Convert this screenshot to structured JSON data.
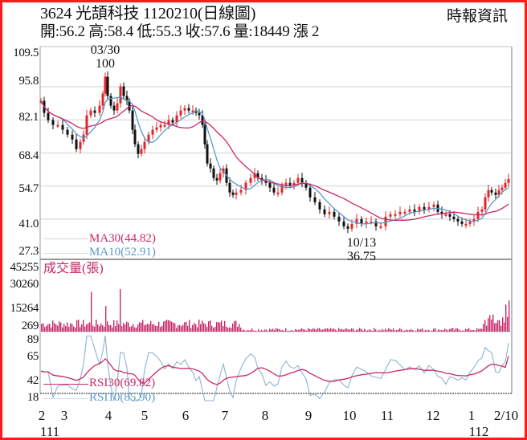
{
  "header": {
    "title": "3624  光頡科技 1120210(日線圖)",
    "ohlc": "開:56.2 高:58.4 低:55.3 收:57.6 量:18449 漲 2",
    "source": "時報資訊"
  },
  "colors": {
    "border": "#ff1a1a",
    "ma30": "#c8286a",
    "ma10": "#5b9ac9",
    "rsi30": "#c8286a",
    "rsi10": "#8fb2cf",
    "volume": "#c8286a",
    "up_candle": "#e0262b",
    "down_candle": "#111111",
    "grid": "#e6e6e6",
    "axis": "#999999"
  },
  "price_panel": {
    "y_ticks": [
      "109.5",
      "95.8",
      "82.1",
      "68.4",
      "54.7",
      "41.0",
      "27.3"
    ],
    "annotation_high": {
      "date": "03/30",
      "value": "100"
    },
    "annotation_low": {
      "date": "10/13",
      "value": "36.75"
    },
    "legend": [
      {
        "label": "MA30(44.82)",
        "key": "ma30"
      },
      {
        "label": "MA10(52.91)",
        "key": "ma10"
      }
    ]
  },
  "volume_panel": {
    "title": "成交量(張)",
    "y_ticks": [
      "45255",
      "30260",
      "15264",
      "269"
    ]
  },
  "rsi_panel": {
    "y_ticks": [
      "89",
      "65",
      "42",
      "18"
    ],
    "legend": [
      {
        "label": "RSI30(69.82)",
        "key": "rsi30"
      },
      {
        "label": "RSI10(85.90)",
        "key": "rsi10"
      }
    ]
  },
  "x_axis": {
    "labels": [
      "2",
      "3",
      "4",
      "5",
      "6",
      "7",
      "8",
      "9",
      "10",
      "11",
      "12",
      "1",
      "2/10"
    ],
    "year_labels": [
      {
        "label": "111",
        "under": "2"
      },
      {
        "label": "112",
        "under": "1"
      }
    ]
  },
  "chart_data": {
    "type": "candlestick",
    "title": "3624 光頡科技 1120210(日線圖)",
    "subtitle": "開:56.2 高:58.4 低:55.3 收:57.6 量:18449 漲 2",
    "x_range": [
      "111/02",
      "112/02/10"
    ],
    "x_tick_labels": [
      "2",
      "3",
      "4",
      "5",
      "6",
      "7",
      "8",
      "9",
      "10",
      "11",
      "12",
      "1",
      "2/10"
    ],
    "price": {
      "ylim": [
        27.3,
        109.5
      ],
      "y_ticks": [
        109.5,
        95.8,
        82.1,
        68.4,
        54.7,
        41.0,
        27.3
      ],
      "last": {
        "open": 56.2,
        "high": 58.4,
        "low": 55.3,
        "close": 57.6,
        "volume": 18449,
        "change": 2
      },
      "high_annotation": {
        "date": "03/30",
        "value": 100
      },
      "low_annotation": {
        "date": "10/13",
        "value": 36.75
      },
      "monthly_close_approx": [
        {
          "month": "2",
          "close": 85
        },
        {
          "month": "3",
          "close": 77
        },
        {
          "month": "4",
          "close": 88
        },
        {
          "month": "5",
          "close": 80
        },
        {
          "month": "6",
          "close": 86
        },
        {
          "month": "7",
          "close": 52
        },
        {
          "month": "8",
          "close": 58
        },
        {
          "month": "9",
          "close": 50
        },
        {
          "month": "10",
          "close": 38
        },
        {
          "month": "11",
          "close": 43
        },
        {
          "month": "12",
          "close": 44
        },
        {
          "month": "1",
          "close": 41
        },
        {
          "month": "2/10",
          "close": 57.6
        }
      ],
      "series": [
        {
          "name": "MA30",
          "last": 44.82
        },
        {
          "name": "MA10",
          "last": 52.91
        }
      ]
    },
    "volume": {
      "unit": "張",
      "ylim": [
        269,
        45255
      ],
      "y_ticks": [
        45255,
        30260,
        15264,
        269
      ],
      "last": 18449
    },
    "rsi": {
      "ylim": [
        18,
        89
      ],
      "y_ticks": [
        89,
        65,
        42,
        18
      ],
      "series": [
        {
          "name": "RSI30",
          "last": 69.82
        },
        {
          "name": "RSI10",
          "last": 85.9
        }
      ]
    }
  }
}
